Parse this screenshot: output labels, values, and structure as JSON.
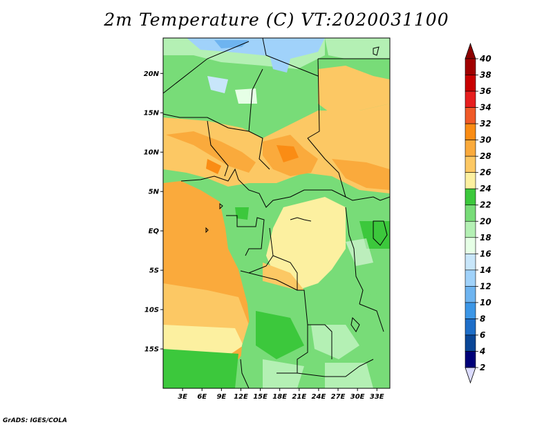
{
  "title": "2m Temperature (C) VT:2020031100",
  "credit": "GrADS: IGES/COLA",
  "map": {
    "lat_labels": [
      "20N",
      "15N",
      "10N",
      "5N",
      "EQ",
      "5S",
      "10S",
      "15S"
    ],
    "lon_labels": [
      "3E",
      "6E",
      "9E",
      "12E",
      "15E",
      "18E",
      "21E",
      "24E",
      "27E",
      "30E",
      "33E"
    ],
    "lat_values": [
      20,
      15,
      10,
      5,
      0,
      -5,
      -10,
      -15
    ],
    "lon_values": [
      3,
      6,
      9,
      12,
      15,
      18,
      21,
      24,
      27,
      30,
      33
    ],
    "lat_range": [
      -20,
      24.5
    ],
    "lon_range": [
      0,
      35
    ]
  },
  "colorbar": {
    "labels": [
      "40",
      "38",
      "36",
      "34",
      "32",
      "30",
      "28",
      "26",
      "24",
      "22",
      "20",
      "18",
      "16",
      "14",
      "12",
      "10",
      "8",
      "6",
      "4",
      "2"
    ],
    "colors": [
      "#a00000",
      "#c80000",
      "#e61e1e",
      "#f05a28",
      "#fa8c14",
      "#faaa3c",
      "#fcc864",
      "#fcf0a0",
      "#3cc83c",
      "#78dc78",
      "#b4f0b4",
      "#e6ffe6",
      "#c8e6fa",
      "#a0d2fa",
      "#6eb4f0",
      "#3c96e6",
      "#1e6ec8",
      "#0a4696",
      "#000078"
    ],
    "top_arrow_color": "#8c0000",
    "bottom_arrow_color": "#dcdcff"
  }
}
